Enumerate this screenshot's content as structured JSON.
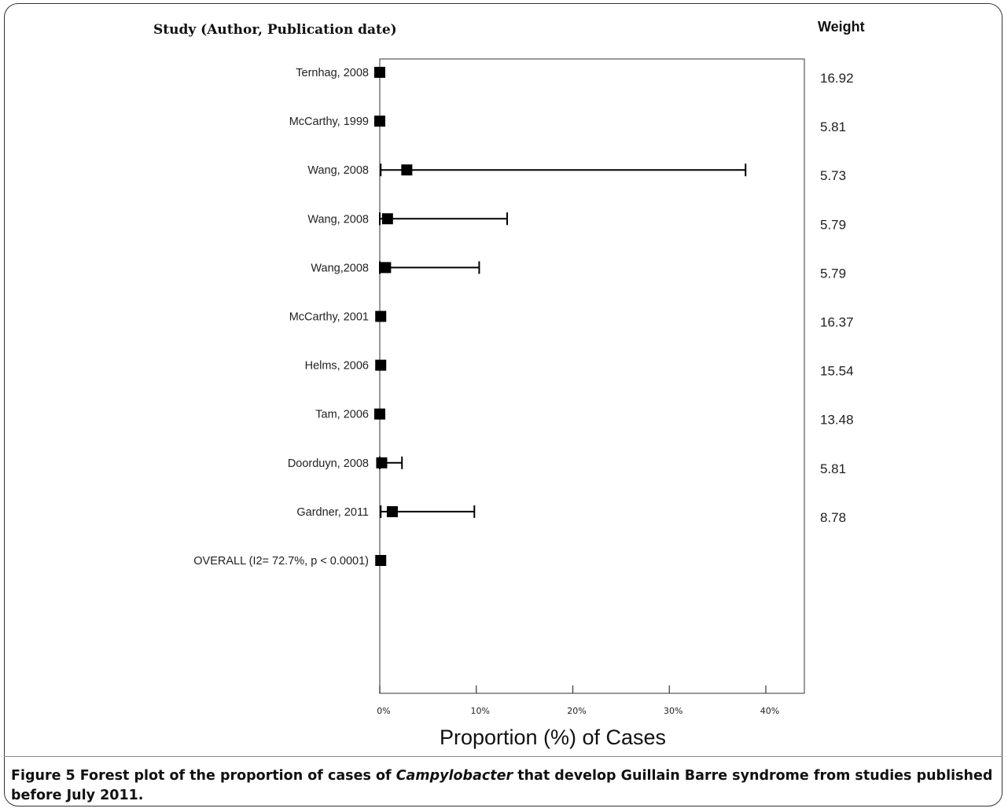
{
  "figure": {
    "study_header": "Study (Author, Publication date)",
    "weight_header": "Weight",
    "caption": {
      "part1": "Figure 5 Forest plot of the proportion of cases of ",
      "organism": "Campylobacter",
      "part2": " that develop Guillain Barre syndrome from studies published before July 2011."
    }
  },
  "chart_data": {
    "type": "forest",
    "xlabel": "Proportion (%) of Cases",
    "xlim": [
      0,
      43
    ],
    "xticks": [
      0,
      10,
      20,
      30,
      40
    ],
    "xtick_labels": [
      "0%",
      "10%",
      "20%",
      "30%",
      "40%"
    ],
    "studies": [
      {
        "label": "Ternhag, 2008",
        "estimate": 0.0,
        "lower": 0.0,
        "upper": 0.0,
        "weight": "16.92"
      },
      {
        "label": "McCarthy, 1999",
        "estimate": 0.0,
        "lower": 0.0,
        "upper": 0.0,
        "weight": "5.81"
      },
      {
        "label": "Wang, 2008",
        "estimate": 2.8,
        "lower": 0.1,
        "upper": 37.9,
        "weight": "5.73"
      },
      {
        "label": "Wang, 2008",
        "estimate": 0.8,
        "lower": 0.0,
        "upper": 13.2,
        "weight": "5.79"
      },
      {
        "label": "Wang,2008",
        "estimate": 0.6,
        "lower": 0.0,
        "upper": 10.3,
        "weight": "5.79"
      },
      {
        "label": "McCarthy, 2001",
        "estimate": 0.1,
        "lower": 0.0,
        "upper": 0.0,
        "weight": "16.37"
      },
      {
        "label": "Helms, 2006",
        "estimate": 0.1,
        "lower": 0.0,
        "upper": 0.0,
        "weight": "15.54"
      },
      {
        "label": "Tam, 2006",
        "estimate": 0.0,
        "lower": 0.0,
        "upper": 0.0,
        "weight": "13.48"
      },
      {
        "label": "Doorduyn, 2008",
        "estimate": 0.2,
        "lower": 0.0,
        "upper": 2.3,
        "weight": "5.81"
      },
      {
        "label": "Gardner, 2011",
        "estimate": 1.3,
        "lower": 0.1,
        "upper": 9.8,
        "weight": "8.78"
      },
      {
        "label": "OVERALL (I2= 72.7%, p <  0.0001)",
        "estimate": 0.1,
        "lower": 0.0,
        "upper": 0.0,
        "weight": ""
      }
    ],
    "colors": {
      "marker": "#000000",
      "axis": "#555555"
    }
  }
}
